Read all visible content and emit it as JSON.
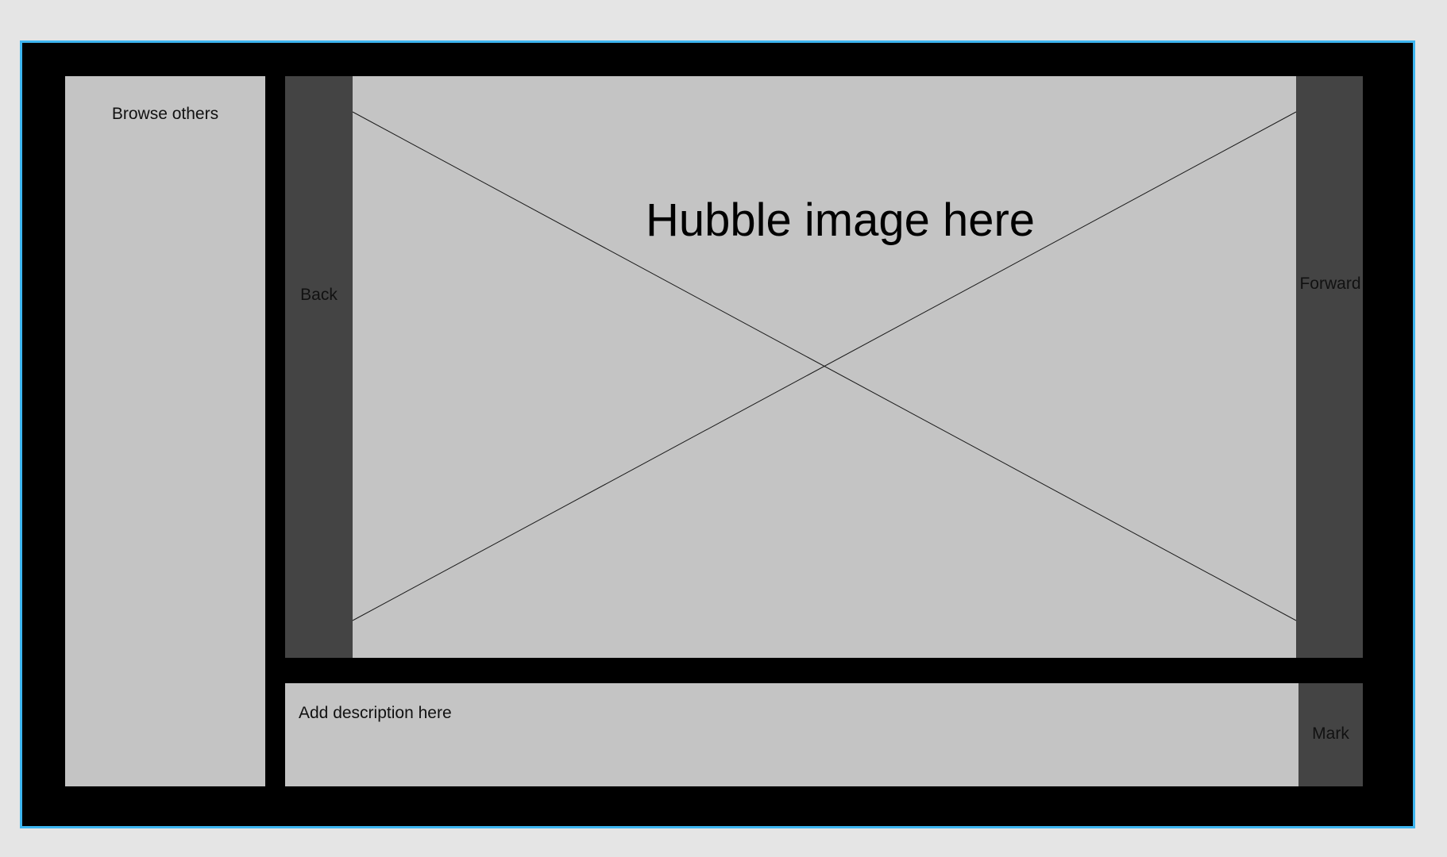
{
  "sidebar": {
    "label": "Browse others"
  },
  "navigation": {
    "back_label": "Back",
    "forward_label": "Forward"
  },
  "image": {
    "caption": "Hubble image here"
  },
  "description": {
    "placeholder": "Add description here"
  },
  "actions": {
    "mark_label": "Mark"
  },
  "colors": {
    "frame_border": "#3db5f0",
    "panel_light": "#c4c4c4",
    "panel_dark": "#444444",
    "background": "#000000"
  }
}
